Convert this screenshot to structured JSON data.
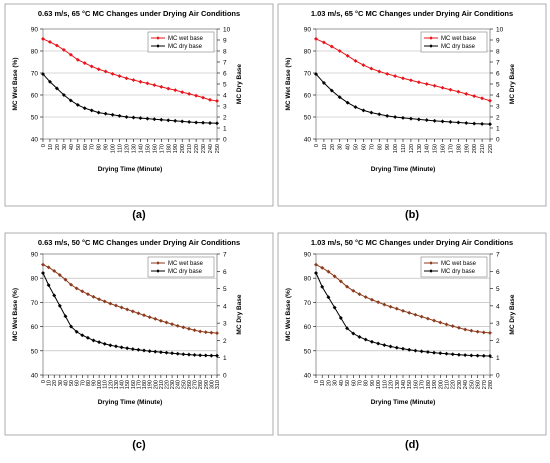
{
  "chart_data": [
    {
      "type": "line",
      "panel_label": "(a)",
      "title": "0.63 m/s, 65 °C MC Changes under Drying Air Conditions",
      "xlabel": "Drying Time (Minute)",
      "ylabel": "MC Wet Base (%)",
      "y2label": "MC Dry Base",
      "x": [
        0,
        10,
        20,
        30,
        40,
        50,
        60,
        70,
        80,
        90,
        100,
        110,
        120,
        130,
        140,
        150,
        160,
        170,
        180,
        190,
        200,
        210,
        220,
        230,
        240,
        250
      ],
      "ylim": [
        40,
        90
      ],
      "yticks": [
        40,
        50,
        60,
        70,
        80,
        90
      ],
      "y2lim": [
        0,
        10
      ],
      "y2ticks": [
        0,
        1,
        2,
        3,
        4,
        5,
        6,
        7,
        8,
        9,
        10
      ],
      "legend_position": "top-right",
      "series": [
        {
          "name": "MC wet base",
          "axis": "left",
          "color": "#e8141c",
          "marker": "diamond",
          "values": [
            85.5,
            84.1,
            82.5,
            80.5,
            78.3,
            76.0,
            74.5,
            73.0,
            71.7,
            70.7,
            69.6,
            68.6,
            67.6,
            66.8,
            66.0,
            65.3,
            64.5,
            63.7,
            62.9,
            62.2,
            61.3,
            60.5,
            59.7,
            58.8,
            57.8,
            57.3
          ]
        },
        {
          "name": "MC dry base",
          "axis": "right",
          "color": "#000000",
          "marker": "diamond",
          "values": [
            5.9,
            5.2,
            4.6,
            4.0,
            3.5,
            3.1,
            2.8,
            2.6,
            2.4,
            2.3,
            2.2,
            2.1,
            2.0,
            1.95,
            1.9,
            1.85,
            1.8,
            1.75,
            1.7,
            1.65,
            1.6,
            1.55,
            1.5,
            1.48,
            1.45,
            1.43
          ]
        }
      ]
    },
    {
      "type": "line",
      "panel_label": "(b)",
      "title": "1.03 m/s, 65 °C MC Changes under Drying Air Conditions",
      "xlabel": "Drying Time (Minute)",
      "ylabel": "MC Wet Base (%)",
      "y2label": "MC Dry Base",
      "x": [
        0,
        10,
        20,
        30,
        40,
        50,
        60,
        70,
        80,
        90,
        100,
        110,
        120,
        130,
        140,
        150,
        160,
        170,
        180,
        190,
        200,
        210,
        220
      ],
      "ylim": [
        40,
        90
      ],
      "yticks": [
        40,
        50,
        60,
        70,
        80,
        90
      ],
      "y2lim": [
        0,
        10
      ],
      "y2ticks": [
        0,
        1,
        2,
        3,
        4,
        5,
        6,
        7,
        8,
        9,
        10
      ],
      "legend_position": "top-right",
      "series": [
        {
          "name": "MC wet base",
          "axis": "left",
          "color": "#e8141c",
          "marker": "diamond",
          "values": [
            85.5,
            83.9,
            82.0,
            80.0,
            77.8,
            75.5,
            73.6,
            72.0,
            70.7,
            69.6,
            68.6,
            67.6,
            66.7,
            65.8,
            65.0,
            64.2,
            63.3,
            62.4,
            61.5,
            60.5,
            59.5,
            58.5,
            57.4
          ]
        },
        {
          "name": "MC dry base",
          "axis": "right",
          "color": "#000000",
          "marker": "diamond",
          "values": [
            5.9,
            5.1,
            4.4,
            3.8,
            3.3,
            2.9,
            2.6,
            2.4,
            2.25,
            2.1,
            2.0,
            1.92,
            1.85,
            1.78,
            1.72,
            1.65,
            1.6,
            1.55,
            1.5,
            1.45,
            1.4,
            1.37,
            1.35
          ]
        }
      ]
    },
    {
      "type": "line",
      "panel_label": "(c)",
      "title": "0.63 m/s, 50 °C MC Changes under Drying Air Conditions",
      "xlabel": "Drying Time (Minute)",
      "ylabel": "MC Wet Base (%)",
      "y2label": "MC Dry Base",
      "x": [
        0,
        10,
        20,
        30,
        40,
        50,
        60,
        70,
        80,
        90,
        100,
        110,
        120,
        130,
        140,
        150,
        160,
        170,
        180,
        190,
        200,
        210,
        220,
        230,
        240,
        250,
        260,
        270,
        280,
        290,
        300,
        310
      ],
      "ylim": [
        40,
        90
      ],
      "yticks": [
        40,
        50,
        60,
        70,
        80,
        90
      ],
      "y2lim": [
        0,
        7
      ],
      "y2ticks": [
        0,
        1,
        2,
        3,
        4,
        5,
        6,
        7
      ],
      "legend_position": "top-right",
      "series": [
        {
          "name": "MC wet base",
          "axis": "left",
          "color": "#8c3a1c",
          "marker": "diamond",
          "values": [
            85.6,
            84.5,
            83.0,
            81.3,
            79.4,
            77.3,
            75.8,
            74.6,
            73.4,
            72.3,
            71.3,
            70.4,
            69.5,
            68.7,
            67.9,
            67.1,
            66.3,
            65.5,
            64.7,
            63.9,
            63.2,
            62.4,
            61.7,
            61.0,
            60.3,
            59.7,
            59.1,
            58.5,
            58.0,
            57.7,
            57.5,
            57.3
          ]
        },
        {
          "name": "MC dry base",
          "axis": "right",
          "color": "#000000",
          "marker": "diamond",
          "values": [
            5.9,
            5.2,
            4.6,
            4.0,
            3.4,
            2.8,
            2.5,
            2.3,
            2.15,
            2.0,
            1.9,
            1.8,
            1.72,
            1.66,
            1.6,
            1.55,
            1.5,
            1.46,
            1.42,
            1.38,
            1.35,
            1.32,
            1.29,
            1.26,
            1.23,
            1.2,
            1.18,
            1.16,
            1.14,
            1.13,
            1.12,
            1.12
          ]
        }
      ]
    },
    {
      "type": "line",
      "panel_label": "(d)",
      "title": "1.03 m/s, 50 °C MC Changes under Drying Air Conditions",
      "xlabel": "Drying Time (Minute)",
      "ylabel": "MC Wet Base (%)",
      "y2label": "MC Dry Base",
      "x": [
        0,
        10,
        20,
        30,
        40,
        50,
        60,
        70,
        80,
        90,
        100,
        110,
        120,
        130,
        140,
        150,
        160,
        170,
        180,
        190,
        200,
        210,
        220,
        230,
        240,
        250,
        260,
        270,
        280
      ],
      "ylim": [
        40,
        90
      ],
      "yticks": [
        40,
        50,
        60,
        70,
        80,
        90
      ],
      "y2lim": [
        0,
        7
      ],
      "y2ticks": [
        0,
        1,
        2,
        3,
        4,
        5,
        6,
        7
      ],
      "legend_position": "top-right",
      "series": [
        {
          "name": "MC wet base",
          "axis": "left",
          "color": "#8c3a1c",
          "marker": "diamond",
          "values": [
            85.6,
            84.3,
            82.7,
            80.8,
            78.7,
            76.5,
            74.8,
            73.4,
            72.2,
            71.1,
            70.1,
            69.1,
            68.2,
            67.4,
            66.5,
            65.7,
            64.9,
            64.1,
            63.3,
            62.5,
            61.7,
            60.9,
            60.2,
            59.5,
            58.8,
            58.3,
            57.9,
            57.6,
            57.4
          ]
        },
        {
          "name": "MC dry base",
          "axis": "right",
          "color": "#000000",
          "marker": "diamond",
          "values": [
            5.9,
            5.1,
            4.5,
            3.9,
            3.3,
            2.7,
            2.4,
            2.2,
            2.05,
            1.92,
            1.82,
            1.73,
            1.65,
            1.58,
            1.52,
            1.46,
            1.41,
            1.37,
            1.33,
            1.29,
            1.26,
            1.23,
            1.2,
            1.17,
            1.15,
            1.13,
            1.12,
            1.11,
            1.1
          ]
        }
      ]
    }
  ]
}
